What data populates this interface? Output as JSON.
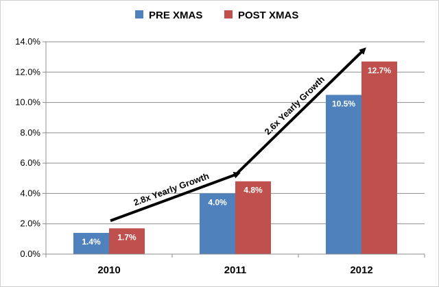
{
  "chart_data": {
    "type": "bar",
    "title": "",
    "xlabel": "",
    "ylabel": "",
    "categories": [
      "2010",
      "2011",
      "2012"
    ],
    "series": [
      {
        "name": "PRE XMAS",
        "values": [
          1.4,
          4.0,
          10.5
        ],
        "labels": [
          "1.4%",
          "4.0%",
          "10.5%"
        ],
        "color": "#4f81bd"
      },
      {
        "name": "POST XMAS",
        "values": [
          1.7,
          4.8,
          12.7
        ],
        "labels": [
          "1.7%",
          "4.8%",
          "12.7%"
        ],
        "color": "#c0504d"
      }
    ],
    "ylim": [
      0,
      14
    ],
    "yticks": [
      "0.0%",
      "2.0%",
      "4.0%",
      "6.0%",
      "8.0%",
      "10.0%",
      "12.0%",
      "14.0%"
    ],
    "grid": true,
    "legend_position": "top-center",
    "annotations": [
      {
        "text": "2.8x Yearly Growth",
        "from": {
          "x": "2010",
          "y": 2.2
        },
        "to": {
          "x": "2011",
          "y": 5.3
        }
      },
      {
        "text": "2.6x Yearly Growth",
        "from": {
          "x": "2011",
          "y": 5.3
        },
        "to": {
          "x": "2012",
          "y": 13.5
        }
      }
    ]
  }
}
